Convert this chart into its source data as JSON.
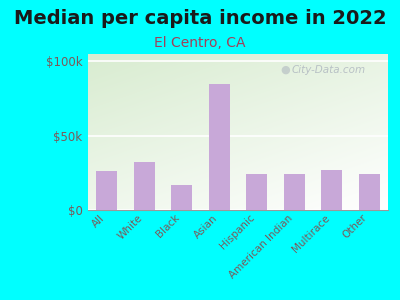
{
  "title": "Median per capita income in 2022",
  "subtitle": "El Centro, CA",
  "categories": [
    "All",
    "White",
    "Black",
    "Asian",
    "Hispanic",
    "American Indian",
    "Multirace",
    "Other"
  ],
  "values": [
    26000,
    32000,
    17000,
    85000,
    24000,
    24500,
    27000,
    24000
  ],
  "bar_color": "#c8a8d8",
  "background_outer": "#00ffff",
  "title_color": "#1a1a1a",
  "subtitle_color": "#a0405a",
  "tick_label_color": "#7a5a5a",
  "ytick_labels": [
    "$0",
    "$50k",
    "$100k"
  ],
  "ytick_values": [
    0,
    50000,
    100000
  ],
  "ylim": [
    0,
    105000
  ],
  "watermark": "City-Data.com",
  "title_fontsize": 14,
  "subtitle_fontsize": 10,
  "watermark_color": "#b0b8c0"
}
